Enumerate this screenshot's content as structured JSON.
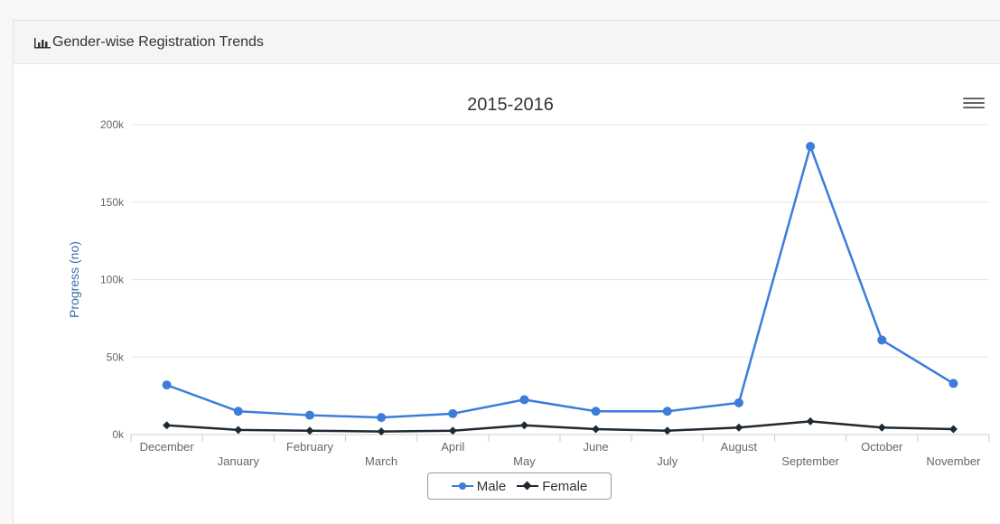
{
  "panel": {
    "title": "Gender-wise Registration Trends",
    "icon": "bar-chart-icon"
  },
  "menu": {
    "icon": "hamburger-menu-icon"
  },
  "colors": {
    "male": "#3b7dd8",
    "female": "#1e2933",
    "grid": "#e6e6e6",
    "axis_text": "#666666",
    "ylabel": "#3b6ea8",
    "title": "#333333"
  },
  "chart_data": {
    "type": "line",
    "title": "2015-2016",
    "xlabel": "",
    "ylabel": "Progress (no)",
    "categories": [
      "December",
      "January",
      "February",
      "March",
      "April",
      "May",
      "June",
      "July",
      "August",
      "September",
      "October",
      "November"
    ],
    "ylim": [
      0,
      200000
    ],
    "yticks": [
      0,
      50000,
      100000,
      150000,
      200000
    ],
    "ytick_labels": [
      "0k",
      "50k",
      "100k",
      "150k",
      "200k"
    ],
    "grid": true,
    "legend_position": "bottom-center",
    "series": [
      {
        "name": "Male",
        "marker": "circle",
        "values": [
          32000,
          15000,
          12500,
          11000,
          13500,
          22500,
          15000,
          15000,
          20500,
          186000,
          61000,
          33000
        ]
      },
      {
        "name": "Female",
        "marker": "diamond",
        "values": [
          6000,
          3000,
          2500,
          2000,
          2500,
          6000,
          3500,
          2500,
          4500,
          8500,
          4500,
          3500
        ]
      }
    ]
  }
}
